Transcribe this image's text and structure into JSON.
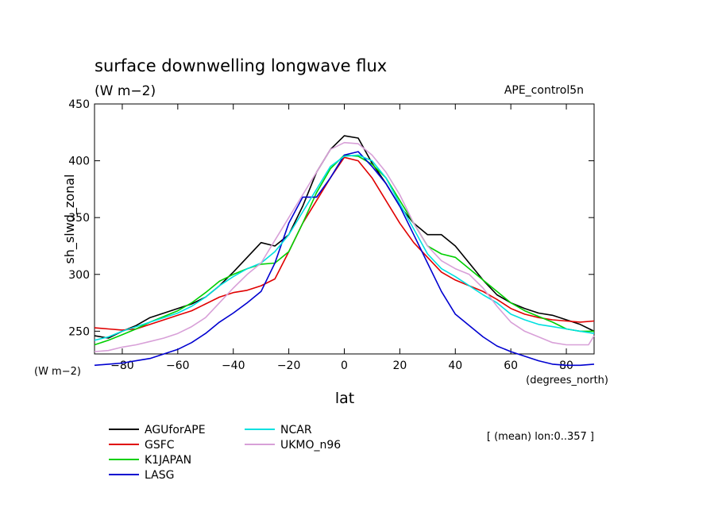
{
  "chart_data": {
    "type": "line",
    "title": "surface downwelling longwave flux",
    "subtitle": "(W m−2)",
    "run_label": "APE_control5n",
    "ylabel": "sh_slwd_zonal",
    "xlabel": "lat",
    "y_unit_label": "(W m−2)",
    "x_unit_label": "(degrees_north)",
    "annotation": "[ (mean) lon:0..357 ]",
    "xlim": [
      -90,
      90
    ],
    "ylim": [
      230,
      450
    ],
    "x_ticks": [
      -80,
      -60,
      -40,
      -20,
      0,
      20,
      40,
      60,
      80
    ],
    "x_tick_labels": [
      "−80",
      "−60",
      "−40",
      "−20",
      "0",
      "20",
      "40",
      "60",
      "80"
    ],
    "y_ticks": [
      250,
      300,
      350,
      400,
      450
    ],
    "y_tick_labels": [
      "250",
      "300",
      "350",
      "400",
      "450"
    ],
    "legend_position": "bottom-left",
    "series": [
      {
        "name": "AGUforAPE",
        "color": "#000000",
        "x": [
          -90,
          -85,
          -80,
          -75,
          -70,
          -65,
          -60,
          -55,
          -50,
          -45,
          -40,
          -35,
          -30,
          -25,
          -20,
          -15,
          -10,
          -5,
          0,
          5,
          10,
          15,
          20,
          25,
          30,
          35,
          40,
          45,
          50,
          55,
          60,
          65,
          70,
          75,
          80,
          85,
          90
        ],
        "values": [
          246,
          244,
          250,
          255,
          262,
          266,
          270,
          274,
          280,
          290,
          302,
          315,
          328,
          325,
          335,
          360,
          390,
          410,
          422,
          420,
          398,
          380,
          360,
          345,
          335,
          335,
          325,
          310,
          295,
          282,
          275,
          270,
          266,
          264,
          260,
          256,
          250
        ]
      },
      {
        "name": "GSFC",
        "color": "#e00000",
        "x": [
          -90,
          -85,
          -80,
          -75,
          -70,
          -65,
          -60,
          -55,
          -50,
          -45,
          -40,
          -35,
          -30,
          -25,
          -20,
          -15,
          -10,
          -5,
          0,
          5,
          10,
          15,
          20,
          25,
          30,
          35,
          40,
          45,
          50,
          55,
          60,
          65,
          70,
          75,
          80,
          85,
          90
        ],
        "values": [
          253,
          252,
          251,
          252,
          256,
          260,
          264,
          268,
          274,
          280,
          284,
          286,
          290,
          296,
          320,
          345,
          365,
          385,
          403,
          400,
          385,
          365,
          345,
          328,
          315,
          302,
          295,
          290,
          285,
          278,
          270,
          265,
          262,
          260,
          259,
          258,
          259
        ]
      },
      {
        "name": "K1JAPAN",
        "color": "#00d000",
        "x": [
          -90,
          -85,
          -80,
          -75,
          -70,
          -65,
          -60,
          -55,
          -50,
          -45,
          -40,
          -35,
          -30,
          -25,
          -20,
          -15,
          -10,
          -5,
          0,
          5,
          10,
          15,
          20,
          25,
          30,
          35,
          40,
          45,
          50,
          55,
          60,
          65,
          70,
          75,
          80,
          85,
          90
        ],
        "values": [
          238,
          242,
          247,
          252,
          258,
          263,
          268,
          275,
          284,
          294,
          300,
          305,
          309,
          310,
          320,
          345,
          372,
          393,
          405,
          404,
          397,
          385,
          365,
          345,
          325,
          318,
          315,
          305,
          295,
          285,
          275,
          268,
          263,
          258,
          252,
          250,
          250
        ]
      },
      {
        "name": "LASG",
        "color": "#0000d0",
        "x": [
          -90,
          -85,
          -80,
          -75,
          -70,
          -65,
          -60,
          -55,
          -50,
          -45,
          -40,
          -35,
          -30,
          -25,
          -20,
          -15,
          -10,
          -5,
          0,
          5,
          10,
          15,
          20,
          25,
          30,
          35,
          40,
          45,
          50,
          55,
          60,
          65,
          70,
          75,
          80,
          85,
          90
        ],
        "values": [
          220,
          221,
          222,
          224,
          226,
          230,
          234,
          240,
          248,
          258,
          266,
          275,
          285,
          310,
          345,
          368,
          368,
          385,
          405,
          408,
          395,
          380,
          360,
          335,
          310,
          285,
          265,
          255,
          245,
          237,
          232,
          228,
          224,
          221,
          220,
          220,
          221
        ]
      },
      {
        "name": "NCAR",
        "color": "#00e0e0",
        "x": [
          -90,
          -85,
          -80,
          -75,
          -70,
          -65,
          -60,
          -55,
          -50,
          -45,
          -40,
          -35,
          -30,
          -25,
          -20,
          -15,
          -10,
          -5,
          0,
          5,
          10,
          15,
          20,
          25,
          30,
          35,
          40,
          45,
          50,
          55,
          60,
          65,
          70,
          75,
          80,
          85,
          90
        ],
        "values": [
          242,
          245,
          250,
          254,
          258,
          262,
          266,
          272,
          280,
          290,
          298,
          305,
          310,
          320,
          335,
          355,
          375,
          395,
          404,
          405,
          400,
          385,
          362,
          340,
          318,
          305,
          298,
          290,
          282,
          275,
          265,
          260,
          256,
          254,
          252,
          250,
          248
        ]
      },
      {
        "name": "UKMO_n96",
        "color": "#d8a0d8",
        "x": [
          -90,
          -85,
          -80,
          -75,
          -70,
          -65,
          -60,
          -55,
          -50,
          -45,
          -40,
          -35,
          -30,
          -25,
          -20,
          -15,
          -10,
          -5,
          0,
          5,
          10,
          15,
          20,
          25,
          30,
          35,
          40,
          45,
          50,
          55,
          60,
          65,
          70,
          75,
          80,
          85,
          88,
          90
        ],
        "values": [
          232,
          233,
          236,
          238,
          241,
          244,
          248,
          254,
          262,
          275,
          288,
          300,
          310,
          330,
          350,
          370,
          390,
          410,
          416,
          415,
          405,
          390,
          370,
          345,
          325,
          312,
          305,
          300,
          288,
          272,
          258,
          250,
          245,
          240,
          238,
          238,
          238,
          246
        ]
      }
    ]
  }
}
